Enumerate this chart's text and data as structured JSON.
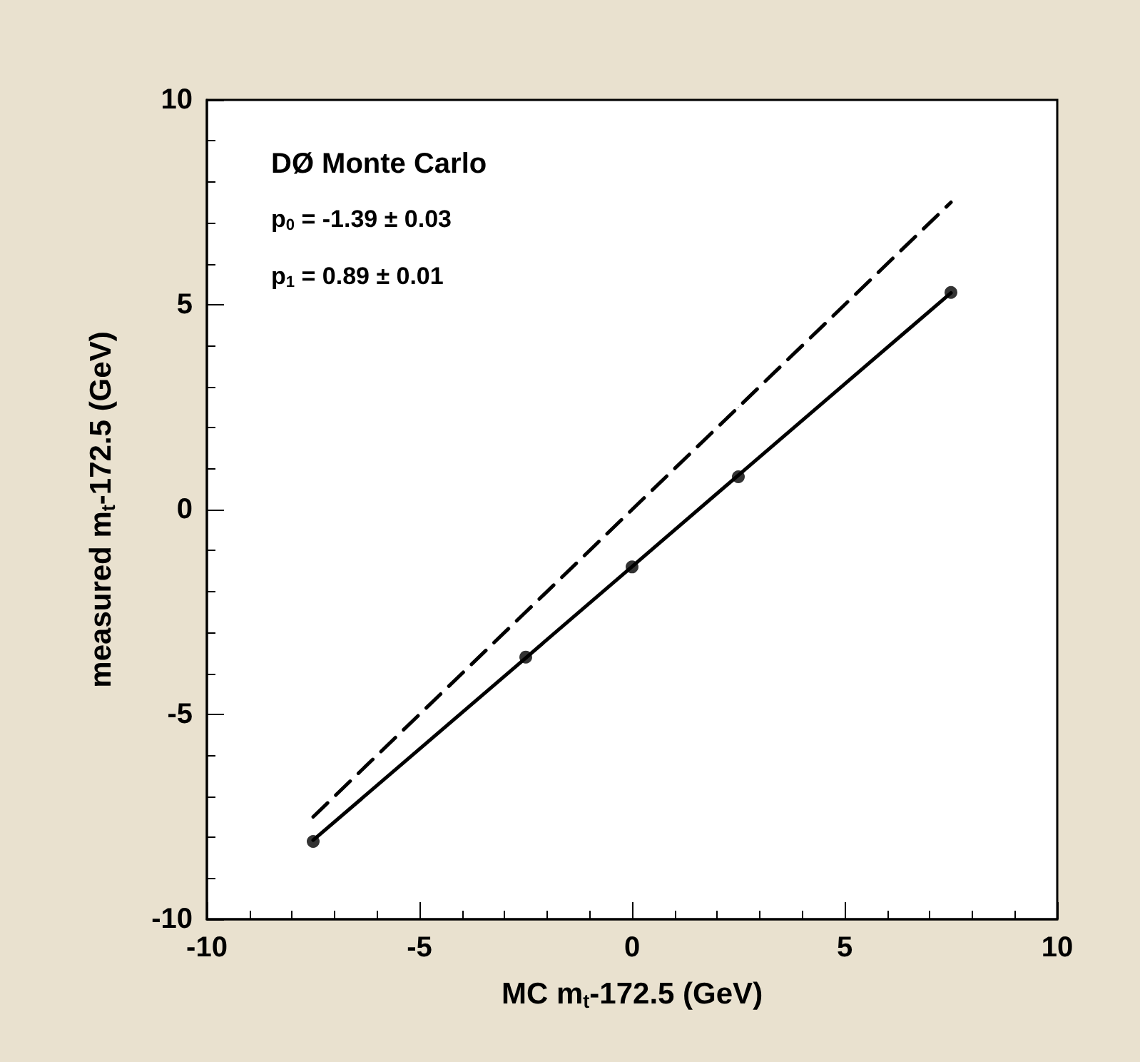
{
  "chart_data": {
    "type": "scatter",
    "xlabel": "MC m$_{t}$-172.5 (GeV)",
    "ylabel": "measured m$_{t}$-172.5 (GeV)",
    "annotations": [
      "DØ Monte Carlo",
      "p$_{0}$ = -1.39 ± 0.03",
      "p$_{1}$ = 0.89 ± 0.01"
    ],
    "x": [
      -7.5,
      -2.5,
      0,
      2.5,
      7.5
    ],
    "series": [
      {
        "type": "line",
        "color": "#000000",
        "values": [
          -7.5,
          -2.5,
          0,
          2.5,
          7.5
        ],
        "line_style": "dashed",
        "marker": "none"
      },
      {
        "type": "line",
        "color": "#000000",
        "values": [
          -8.07,
          -3.62,
          -1.39,
          0.84,
          5.29
        ],
        "line_style": "solid",
        "marker": "none"
      },
      {
        "color": "#000000",
        "values": [
          -8.1,
          -3.6,
          -1.4,
          0.8,
          5.3
        ],
        "marker": "circle"
      }
    ],
    "xlim": [
      -10,
      10
    ],
    "xticks": [
      -10,
      -5,
      0,
      5,
      10
    ],
    "ylim": [
      -10,
      10
    ],
    "yticks": [
      -10,
      -5,
      0,
      5,
      10
    ]
  }
}
